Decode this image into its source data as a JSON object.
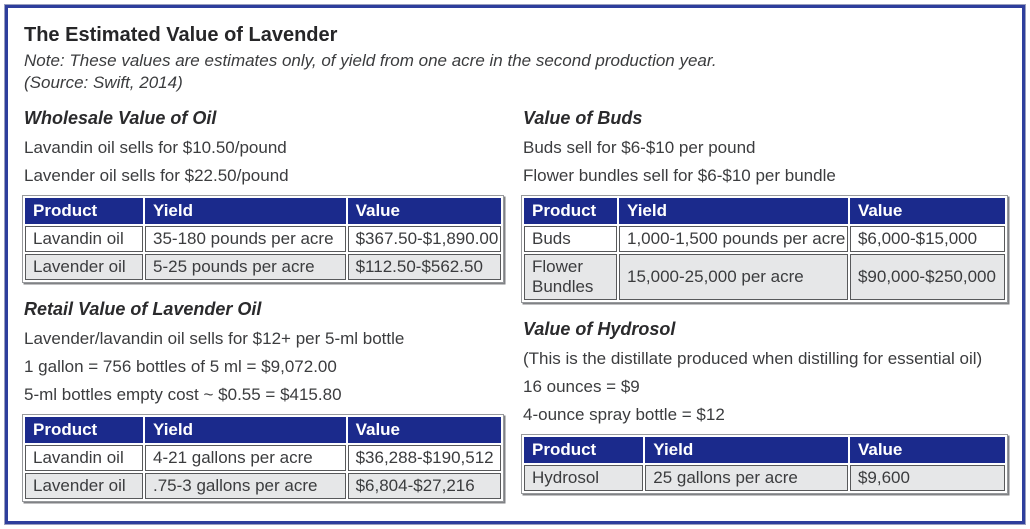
{
  "header": {
    "title": "The Estimated Value of Lavender",
    "note": "Note: These values are estimates only, of yield from one acre in the second production year.",
    "source": "(Source: Swift, 2014)"
  },
  "colors": {
    "frame_border_blue": "#2e3e9c",
    "table_header_navy": "#1b2a8c",
    "alt_row_gray": "#e6e7e8",
    "body_text": "#3b3c3e"
  },
  "sections": [
    {
      "heading": "Wholesale Value of Oil",
      "lines": [
        "Lavandin oil sells for $10.50/pound",
        "Lavender oil sells for $22.50/pound"
      ],
      "table": {
        "headers": [
          "Product",
          "Yield",
          "Value"
        ],
        "rows": [
          [
            "Lavandin oil",
            "35-180 pounds per acre",
            "$367.50-$1,890.00"
          ],
          [
            "Lavender oil",
            "5-25 pounds per acre",
            "$112.50-$562.50"
          ]
        ]
      }
    },
    {
      "heading": "Retail Value of Lavender Oil",
      "lines": [
        "Lavender/lavandin oil sells for $12+ per 5-ml bottle",
        "1 gallon = 756 bottles of 5 ml = $9,072.00",
        "5-ml bottles empty cost ~ $0.55 = $415.80"
      ],
      "table": {
        "headers": [
          "Product",
          "Yield",
          "Value"
        ],
        "rows": [
          [
            "Lavandin oil",
            "4-21 gallons per acre",
            "$36,288-$190,512"
          ],
          [
            "Lavender oil",
            ".75-3 gallons per acre",
            "$6,804-$27,216"
          ]
        ]
      }
    },
    {
      "heading": "Value of Buds",
      "lines": [
        "Buds sell for $6-$10 per pound",
        "Flower bundles sell for $6-$10 per bundle"
      ],
      "table": {
        "headers": [
          "Product",
          "Yield",
          "Value"
        ],
        "rows": [
          [
            "Buds",
            "1,000-1,500 pounds per acre",
            "$6,000-$15,000"
          ],
          [
            "Flower Bundles",
            "15,000-25,000 per acre",
            "$90,000-$250,000"
          ]
        ]
      }
    },
    {
      "heading": "Value of Hydrosol",
      "lines": [
        "(This is the distillate produced when distilling for essential oil)",
        "16 ounces = $9",
        "4-ounce spray bottle = $12"
      ],
      "table": {
        "headers": [
          "Product",
          "Yield",
          "Value"
        ],
        "rows": [
          [
            "Hydrosol",
            "25 gallons per acre",
            "$9,600"
          ]
        ]
      }
    }
  ]
}
